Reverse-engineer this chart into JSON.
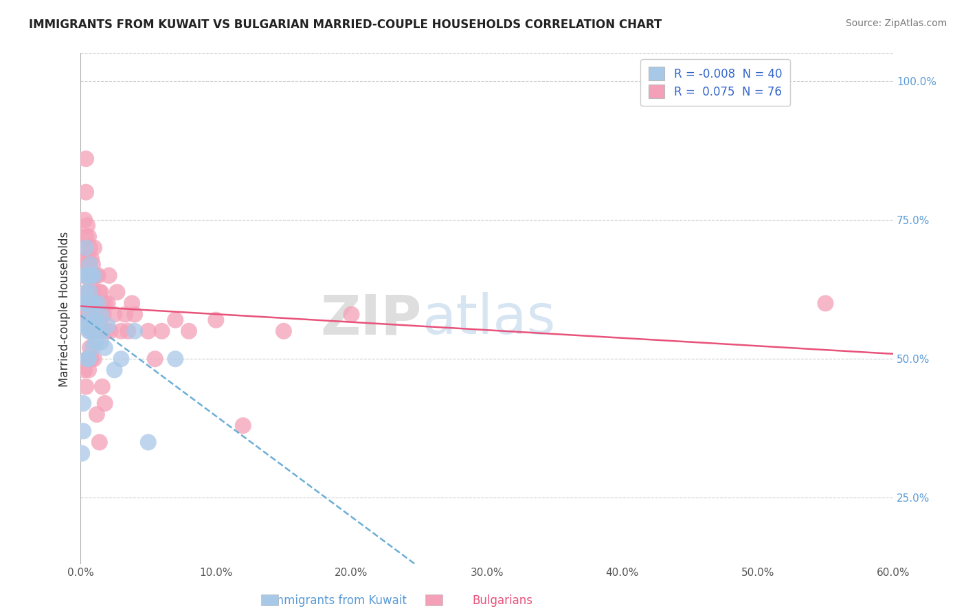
{
  "title": "IMMIGRANTS FROM KUWAIT VS BULGARIAN MARRIED-COUPLE HOUSEHOLDS CORRELATION CHART",
  "source_text": "Source: ZipAtlas.com",
  "ylabel": "Married-couple Households",
  "xlabel_blue": "Immigrants from Kuwait",
  "xlabel_pink": "Bulgarians",
  "watermark": "ZIPatlas",
  "legend_blue": "R = -0.008  N = 40",
  "legend_pink": "R =  0.075  N = 76",
  "xlim": [
    0.0,
    0.6
  ],
  "ylim": [
    0.13,
    1.05
  ],
  "yticks": [
    0.25,
    0.5,
    0.75,
    1.0
  ],
  "ytick_labels": [
    "25.0%",
    "50.0%",
    "75.0%",
    "100.0%"
  ],
  "xticks": [
    0.0,
    0.1,
    0.2,
    0.3,
    0.4,
    0.5,
    0.6
  ],
  "xtick_labels": [
    "0.0%",
    "10.0%",
    "20.0%",
    "30.0%",
    "40.0%",
    "50.0%",
    "60.0%"
  ],
  "blue_scatter_color": "#a8c8e8",
  "pink_scatter_color": "#f4a0b8",
  "blue_line_color": "#6baed6",
  "pink_line_color": "#e8527a",
  "grid_color": "#cccccc",
  "background_color": "#ffffff",
  "blue_x": [
    0.001,
    0.002,
    0.002,
    0.003,
    0.003,
    0.003,
    0.004,
    0.004,
    0.005,
    0.005,
    0.005,
    0.005,
    0.006,
    0.006,
    0.006,
    0.006,
    0.007,
    0.007,
    0.007,
    0.008,
    0.008,
    0.008,
    0.009,
    0.009,
    0.01,
    0.01,
    0.01,
    0.011,
    0.012,
    0.013,
    0.015,
    0.015,
    0.016,
    0.018,
    0.02,
    0.025,
    0.03,
    0.04,
    0.05,
    0.07
  ],
  "blue_y": [
    0.33,
    0.37,
    0.42,
    0.56,
    0.6,
    0.65,
    0.62,
    0.7,
    0.56,
    0.6,
    0.65,
    0.5,
    0.55,
    0.6,
    0.65,
    0.5,
    0.58,
    0.62,
    0.67,
    0.55,
    0.6,
    0.65,
    0.52,
    0.57,
    0.55,
    0.6,
    0.65,
    0.53,
    0.57,
    0.6,
    0.53,
    0.58,
    0.55,
    0.52,
    0.56,
    0.48,
    0.5,
    0.55,
    0.35,
    0.5
  ],
  "pink_x": [
    0.001,
    0.002,
    0.002,
    0.003,
    0.003,
    0.003,
    0.004,
    0.004,
    0.004,
    0.005,
    0.005,
    0.005,
    0.005,
    0.006,
    0.006,
    0.006,
    0.007,
    0.007,
    0.007,
    0.007,
    0.008,
    0.008,
    0.008,
    0.009,
    0.009,
    0.009,
    0.01,
    0.01,
    0.01,
    0.01,
    0.011,
    0.011,
    0.012,
    0.012,
    0.013,
    0.013,
    0.014,
    0.015,
    0.015,
    0.016,
    0.016,
    0.017,
    0.018,
    0.019,
    0.02,
    0.021,
    0.022,
    0.025,
    0.027,
    0.03,
    0.033,
    0.035,
    0.038,
    0.04,
    0.05,
    0.055,
    0.06,
    0.07,
    0.08,
    0.1,
    0.12,
    0.15,
    0.2,
    0.003,
    0.004,
    0.005,
    0.006,
    0.007,
    0.008,
    0.009,
    0.012,
    0.014,
    0.016,
    0.018,
    0.55,
    0.01
  ],
  "pink_y": [
    0.57,
    0.6,
    0.65,
    0.7,
    0.75,
    0.68,
    0.8,
    0.86,
    0.72,
    0.62,
    0.68,
    0.74,
    0.58,
    0.62,
    0.67,
    0.72,
    0.6,
    0.65,
    0.7,
    0.55,
    0.58,
    0.63,
    0.68,
    0.62,
    0.67,
    0.57,
    0.6,
    0.65,
    0.7,
    0.55,
    0.6,
    0.65,
    0.55,
    0.6,
    0.65,
    0.58,
    0.62,
    0.57,
    0.62,
    0.6,
    0.55,
    0.58,
    0.6,
    0.55,
    0.6,
    0.65,
    0.55,
    0.58,
    0.62,
    0.55,
    0.58,
    0.55,
    0.6,
    0.58,
    0.55,
    0.5,
    0.55,
    0.57,
    0.55,
    0.57,
    0.38,
    0.55,
    0.58,
    0.48,
    0.45,
    0.5,
    0.48,
    0.52,
    0.5,
    0.55,
    0.4,
    0.35,
    0.45,
    0.42,
    0.6,
    0.5
  ]
}
